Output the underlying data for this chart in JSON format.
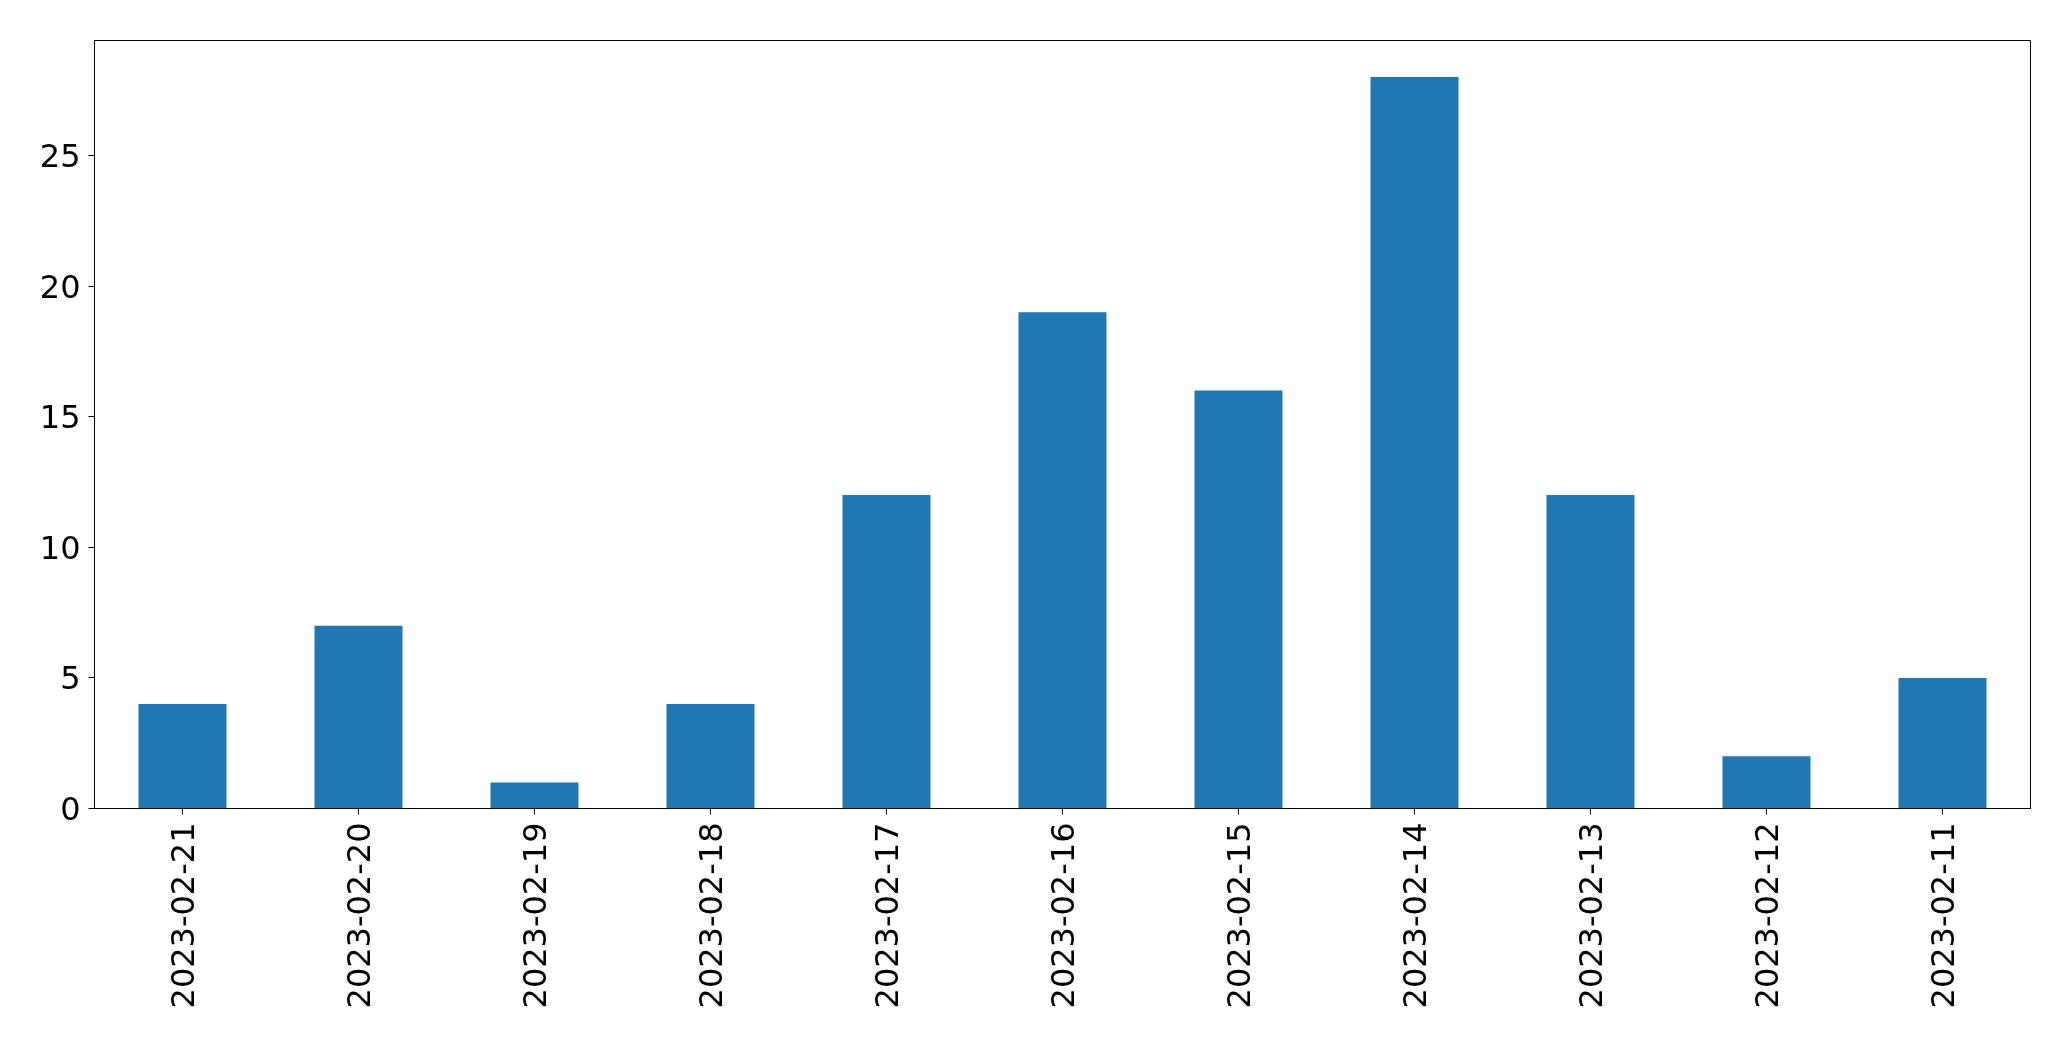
{
  "chart_data": {
    "type": "bar",
    "categories": [
      "2023-02-21",
      "2023-02-20",
      "2023-02-19",
      "2023-02-18",
      "2023-02-17",
      "2023-02-16",
      "2023-02-15",
      "2023-02-14",
      "2023-02-13",
      "2023-02-12",
      "2023-02-11"
    ],
    "values": [
      4,
      7,
      1,
      4,
      12,
      19,
      16,
      28,
      12,
      2,
      5
    ],
    "color": "#1f77b4",
    "ylim": [
      0,
      29.4
    ],
    "yticks": [
      0,
      5,
      10,
      15,
      20,
      25
    ],
    "grid": false
  }
}
